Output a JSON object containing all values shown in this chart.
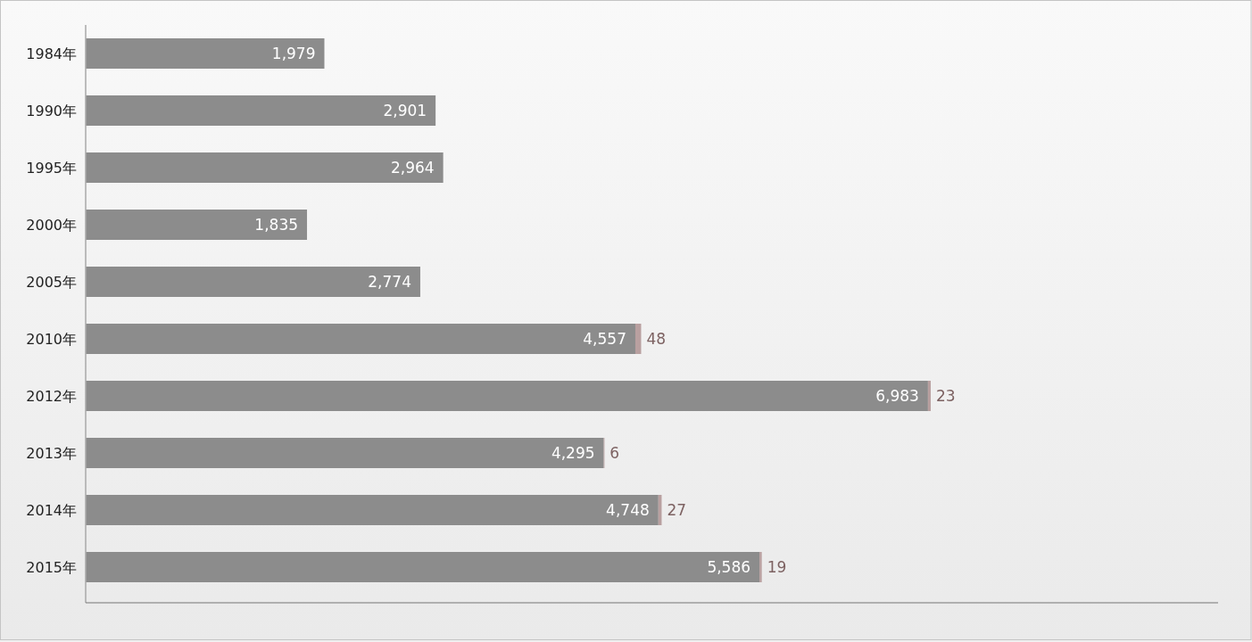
{
  "chart_data": {
    "type": "bar",
    "orientation": "horizontal",
    "stacked": true,
    "categories": [
      "1984年",
      "1990年",
      "1995年",
      "2000年",
      "2005年",
      "2010年",
      "2012年",
      "2013年",
      "2014年",
      "2015年"
    ],
    "series": [
      {
        "color": "#8c8c8c",
        "values": [
          1979,
          2901,
          2964,
          1835,
          2774,
          4557,
          6983,
          4295,
          4748,
          5586
        ],
        "value_labels": [
          "1,979",
          "2,901",
          "2,964",
          "1,835",
          "2,774",
          "4,557",
          "6,983",
          "4,295",
          "4,748",
          "5,586"
        ]
      },
      {
        "color": "#b9a0a0",
        "values": [
          null,
          null,
          null,
          null,
          null,
          48,
          23,
          6,
          27,
          19
        ],
        "value_labels": [
          null,
          null,
          null,
          null,
          null,
          "48",
          "23",
          "6",
          "27",
          "19"
        ]
      }
    ]
  }
}
